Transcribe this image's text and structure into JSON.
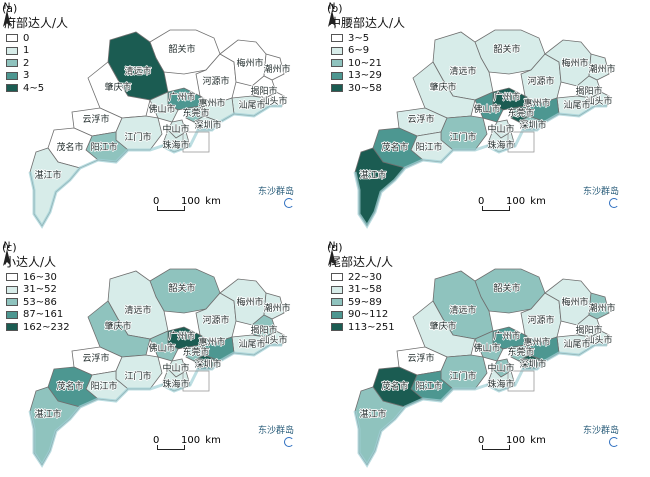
{
  "legend_colors": [
    "#ffffff",
    "#d7ece9",
    "#8fc3be",
    "#4d9791",
    "#1b5c52"
  ],
  "north_label": "N",
  "scale_bar": {
    "zero": "0",
    "distance": "100",
    "unit": "km"
  },
  "islands_label": "东沙群岛",
  "cities": [
    {
      "id": "shaoguan",
      "name": "韶关市"
    },
    {
      "id": "qingyuan",
      "name": "清远市"
    },
    {
      "id": "heyuan",
      "name": "河源市"
    },
    {
      "id": "meizhou",
      "name": "梅州市"
    },
    {
      "id": "chaozhou",
      "name": "潮州市"
    },
    {
      "id": "jieyang",
      "name": "揭阳市"
    },
    {
      "id": "shantou",
      "name": "汕头市"
    },
    {
      "id": "shanwei",
      "name": "汕尾市"
    },
    {
      "id": "huizhou",
      "name": "惠州市"
    },
    {
      "id": "dongguan",
      "name": "东莞市"
    },
    {
      "id": "shenzhen",
      "name": "深圳市"
    },
    {
      "id": "guangzhou",
      "name": "广州市"
    },
    {
      "id": "foshan",
      "name": "佛山市"
    },
    {
      "id": "zhaoqing",
      "name": "肇庆市"
    },
    {
      "id": "yunfu",
      "name": "云浮市"
    },
    {
      "id": "jiangmen",
      "name": "江门市"
    },
    {
      "id": "zhongshan",
      "name": "中山市"
    },
    {
      "id": "zhuhai",
      "name": "珠海市"
    },
    {
      "id": "yangjiang",
      "name": "阳江市"
    },
    {
      "id": "maoming",
      "name": "茂名市"
    },
    {
      "id": "zhanjiang",
      "name": "湛江市"
    }
  ],
  "panels": [
    {
      "id": "a",
      "label": "(a)",
      "title": "府部达人/人",
      "legend": [
        "0",
        "1",
        "2",
        "3",
        "4~5"
      ],
      "classes": {
        "shaoguan": 0,
        "qingyuan": 4,
        "heyuan": 0,
        "meizhou": 0,
        "chaozhou": 0,
        "jieyang": 0,
        "shantou": 0,
        "shanwei": 1,
        "huizhou": 1,
        "dongguan": 2,
        "shenzhen": 1,
        "guangzhou": 3,
        "foshan": 1,
        "zhaoqing": 0,
        "yunfu": 0,
        "jiangmen": 1,
        "zhongshan": 1,
        "zhuhai": 1,
        "yangjiang": 2,
        "maoming": 0,
        "zhanjiang": 1
      }
    },
    {
      "id": "b",
      "label": "(b)",
      "title": "中腰部达人/人",
      "legend": [
        "3~5",
        "6~9",
        "10~21",
        "13~29",
        "30~58"
      ],
      "classes": {
        "shaoguan": 1,
        "qingyuan": 1,
        "heyuan": 1,
        "meizhou": 1,
        "chaozhou": 1,
        "jieyang": 1,
        "shantou": 1,
        "shanwei": 1,
        "huizhou": 3,
        "dongguan": 4,
        "shenzhen": 2,
        "guangzhou": 4,
        "foshan": 3,
        "zhaoqing": 1,
        "yunfu": 1,
        "jiangmen": 2,
        "zhongshan": 1,
        "zhuhai": 1,
        "yangjiang": 1,
        "maoming": 3,
        "zhanjiang": 4
      }
    },
    {
      "id": "c",
      "label": "(c)",
      "title": "小达人/人",
      "legend": [
        "16~30",
        "31~52",
        "53~86",
        "87~161",
        "162~232"
      ],
      "classes": {
        "shaoguan": 2,
        "qingyuan": 1,
        "heyuan": 1,
        "meizhou": 1,
        "chaozhou": 1,
        "jieyang": 2,
        "shantou": 1,
        "shanwei": 1,
        "huizhou": 3,
        "dongguan": 2,
        "shenzhen": 4,
        "guangzhou": 4,
        "foshan": 2,
        "zhaoqing": 2,
        "yunfu": 0,
        "jiangmen": 1,
        "zhongshan": 1,
        "zhuhai": 1,
        "yangjiang": 1,
        "maoming": 3,
        "zhanjiang": 2
      }
    },
    {
      "id": "d",
      "label": "(d)",
      "title": "尾部达人/人",
      "legend": [
        "22~30",
        "31~58",
        "59~89",
        "90~112",
        "113~251"
      ],
      "classes": {
        "shaoguan": 2,
        "qingyuan": 2,
        "heyuan": 1,
        "meizhou": 1,
        "chaozhou": 2,
        "jieyang": 1,
        "shantou": 1,
        "shanwei": 1,
        "huizhou": 3,
        "dongguan": 2,
        "shenzhen": 4,
        "guangzhou": 3,
        "foshan": 2,
        "zhaoqing": 1,
        "yunfu": 0,
        "jiangmen": 2,
        "zhongshan": 2,
        "zhuhai": 1,
        "yangjiang": 3,
        "maoming": 4,
        "zhanjiang": 2
      }
    }
  ]
}
